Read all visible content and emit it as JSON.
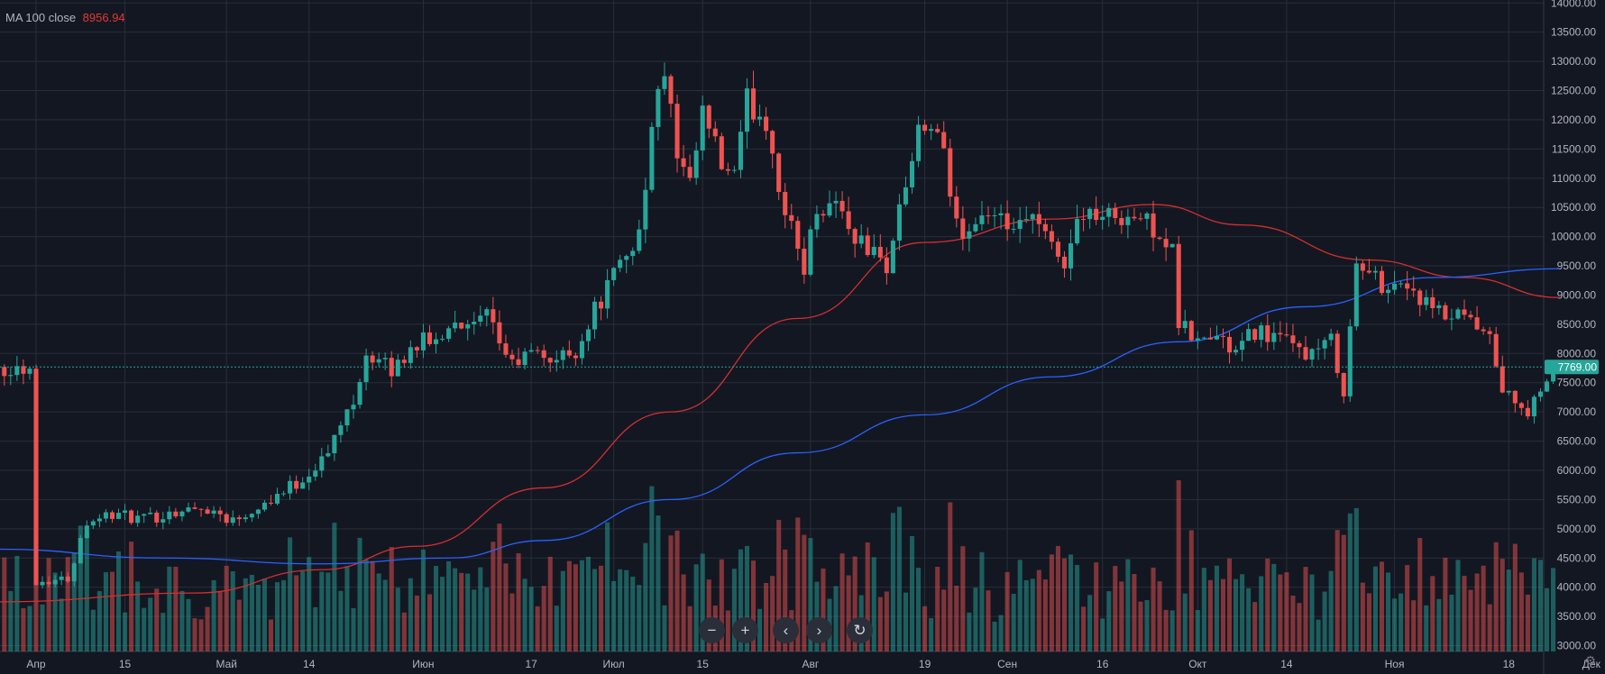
{
  "legend": {
    "ma100_label": "MA 100 close",
    "ma100_value": "8956.94"
  },
  "price_axis": {
    "ticks": [
      3000,
      3500,
      4000,
      4500,
      5000,
      5500,
      6000,
      6500,
      7000,
      7500,
      8000,
      8500,
      9000,
      9500,
      10000,
      10500,
      11000,
      11500,
      12000,
      12500,
      13000,
      13500,
      14000
    ],
    "current_price": "7769.00",
    "current_price_value": 7769
  },
  "time_axis": {
    "labels": [
      "Апр",
      "15",
      "Май",
      "14",
      "Июн",
      "17",
      "Июл",
      "15",
      "Авг",
      "19",
      "Сен",
      "16",
      "Окт",
      "14",
      "Ноя",
      "18",
      "Дек"
    ],
    "label_days": [
      0,
      14,
      30,
      43,
      61,
      78,
      91,
      105,
      122,
      140,
      153,
      168,
      183,
      197,
      214,
      232,
      245
    ]
  },
  "toolbar": {
    "zoom_out": "−",
    "zoom_in": "+",
    "scroll_left": "‹",
    "scroll_right": "›",
    "reset": "↻"
  },
  "colors": {
    "background": "#131722",
    "grid": "#2a2e39",
    "up": "#26a69a",
    "down": "#ef5350",
    "ma_red": "#d32f2f",
    "ma_blue": "#2962ff",
    "current_price": "#26a69a"
  },
  "chart_data": {
    "type": "candlestick",
    "symbol_interval": "1D",
    "y_range": [
      2900,
      14050
    ],
    "x_start_date": "2019-03-25",
    "close_keypoints": [
      [
        0,
        4100
      ],
      [
        5,
        4150
      ],
      [
        8,
        5150
      ],
      [
        12,
        5250
      ],
      [
        17,
        5150
      ],
      [
        22,
        5300
      ],
      [
        27,
        5350
      ],
      [
        31,
        5150
      ],
      [
        36,
        5450
      ],
      [
        42,
        5850
      ],
      [
        46,
        6300
      ],
      [
        50,
        7250
      ],
      [
        52,
        8000
      ],
      [
        56,
        7700
      ],
      [
        60,
        8200
      ],
      [
        63,
        8200
      ],
      [
        66,
        8650
      ],
      [
        68,
        8400
      ],
      [
        71,
        8600
      ],
      [
        75,
        7800
      ],
      [
        78,
        8000
      ],
      [
        82,
        7900
      ],
      [
        85,
        8050
      ],
      [
        88,
        8750
      ],
      [
        92,
        9500
      ],
      [
        95,
        10100
      ],
      [
        97,
        11800
      ],
      [
        99,
        12900
      ],
      [
        101,
        11300
      ],
      [
        103,
        10800
      ],
      [
        105,
        12100
      ],
      [
        108,
        11200
      ],
      [
        110,
        11000
      ],
      [
        112,
        12300
      ],
      [
        115,
        12000
      ],
      [
        118,
        10400
      ],
      [
        121,
        9500
      ],
      [
        123,
        10500
      ],
      [
        126,
        10600
      ],
      [
        129,
        10000
      ],
      [
        132,
        9700
      ],
      [
        134,
        9500
      ],
      [
        137,
        10900
      ],
      [
        139,
        11700
      ],
      [
        141,
        11900
      ],
      [
        143,
        11300
      ],
      [
        145,
        10200
      ],
      [
        147,
        10100
      ],
      [
        149,
        10400
      ],
      [
        151,
        10200
      ],
      [
        153,
        10200
      ],
      [
        155,
        10100
      ],
      [
        157,
        10300
      ],
      [
        160,
        9800
      ],
      [
        162,
        9600
      ],
      [
        165,
        10500
      ],
      [
        168,
        10300
      ],
      [
        171,
        10400
      ],
      [
        174,
        10300
      ],
      [
        177,
        10100
      ],
      [
        179,
        9700
      ],
      [
        180,
        8500
      ],
      [
        183,
        8200
      ],
      [
        186,
        8300
      ],
      [
        189,
        8000
      ],
      [
        192,
        8400
      ],
      [
        195,
        8300
      ],
      [
        198,
        8100
      ],
      [
        201,
        8000
      ],
      [
        204,
        8200
      ],
      [
        206,
        7400
      ],
      [
        207,
        8400
      ],
      [
        208,
        9500
      ],
      [
        212,
        9200
      ],
      [
        215,
        9200
      ],
      [
        217,
        9100
      ],
      [
        219,
        8800
      ],
      [
        222,
        8600
      ],
      [
        224,
        8600
      ],
      [
        226,
        8500
      ],
      [
        229,
        8200
      ],
      [
        231,
        7400
      ],
      [
        233,
        7100
      ],
      [
        235,
        7000
      ],
      [
        238,
        7450
      ],
      [
        239,
        7769
      ]
    ],
    "volume_bars_shown": true,
    "moving_averages": [
      {
        "color_key": "ma_red",
        "period": 100,
        "points": [
          [
            -6,
            3750
          ],
          [
            25,
            3900
          ],
          [
            45,
            4300
          ],
          [
            60,
            4700
          ],
          [
            80,
            5700
          ],
          [
            100,
            7000
          ],
          [
            120,
            8600
          ],
          [
            140,
            9900
          ],
          [
            160,
            10300
          ],
          [
            176,
            10550
          ],
          [
            190,
            10200
          ],
          [
            210,
            9600
          ],
          [
            225,
            9300
          ],
          [
            240,
            8957
          ]
        ]
      },
      {
        "color_key": "ma_blue",
        "points": [
          [
            -6,
            4650
          ],
          [
            20,
            4500
          ],
          [
            45,
            4400
          ],
          [
            65,
            4500
          ],
          [
            80,
            4800
          ],
          [
            100,
            5500
          ],
          [
            120,
            6300
          ],
          [
            140,
            6950
          ],
          [
            160,
            7600
          ],
          [
            180,
            8200
          ],
          [
            200,
            8800
          ],
          [
            220,
            9300
          ],
          [
            240,
            9450
          ]
        ]
      }
    ]
  }
}
